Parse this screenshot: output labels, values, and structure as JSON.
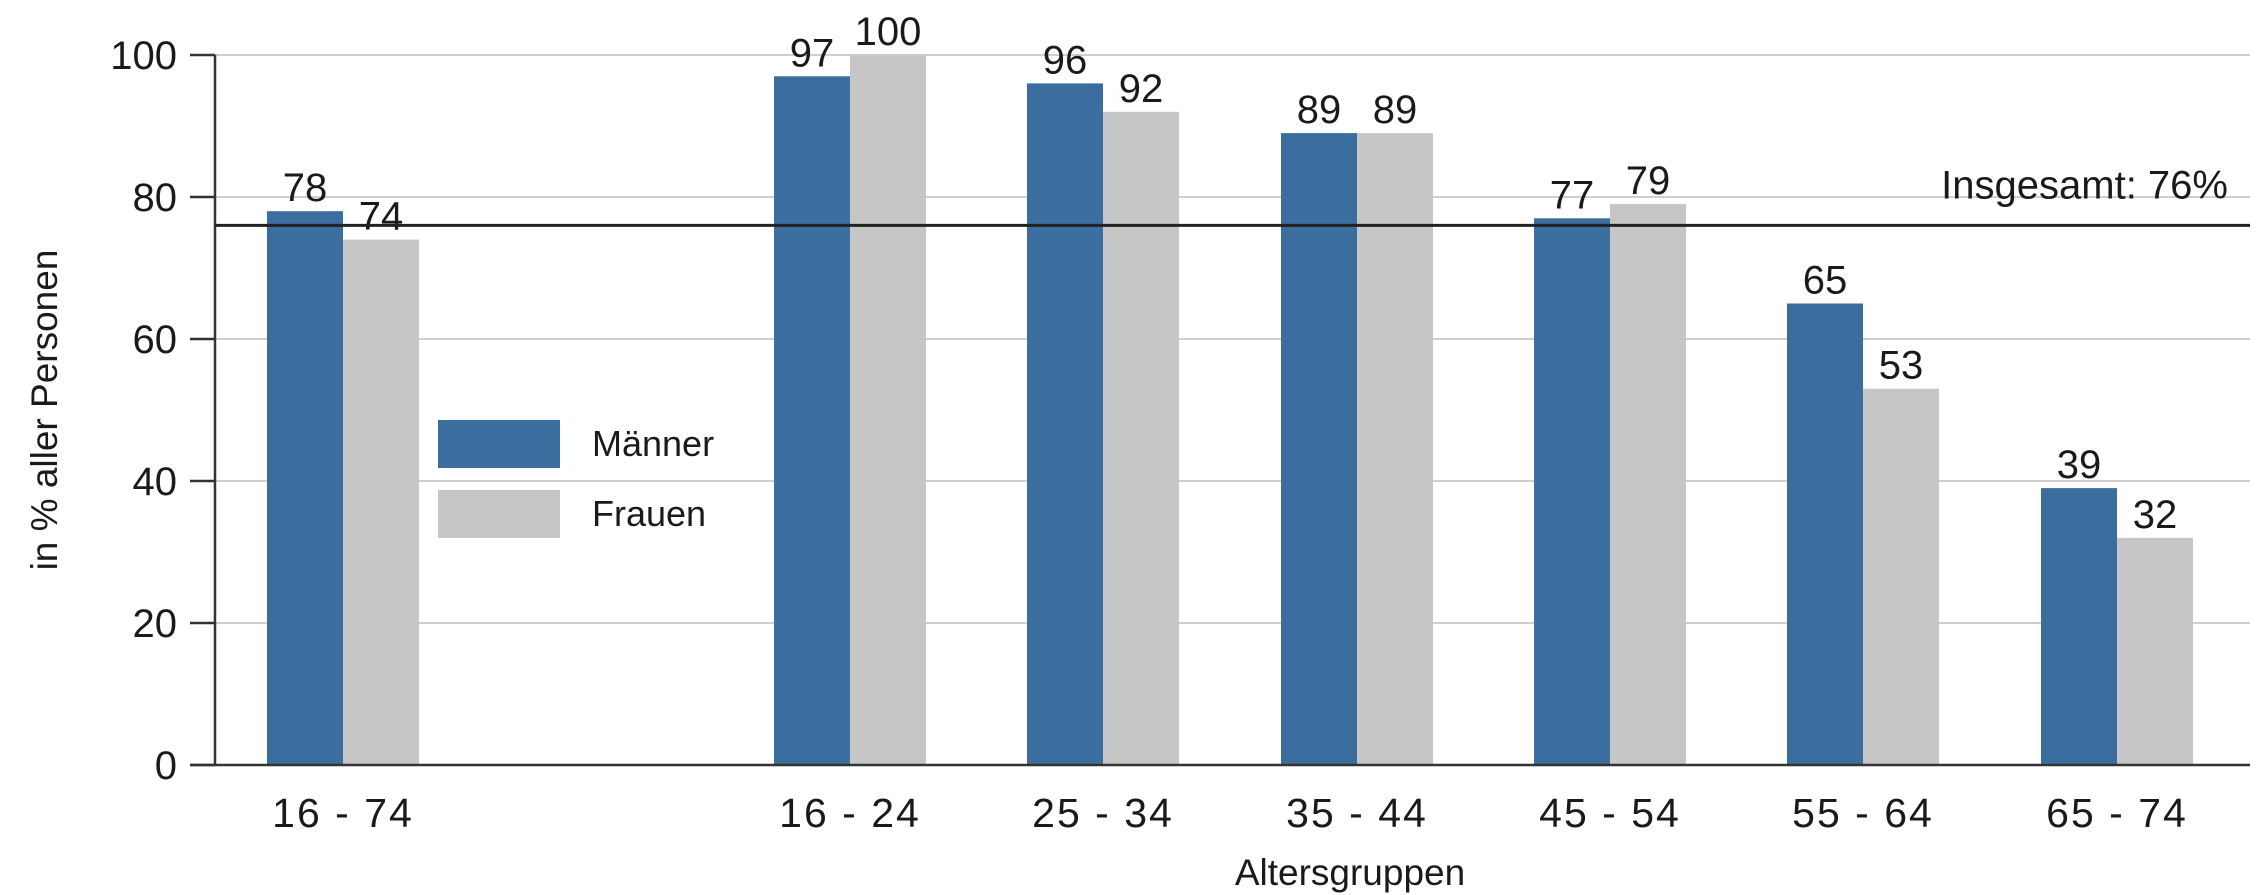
{
  "chart_data": {
    "type": "bar",
    "categories": [
      "16 - 74",
      "16 - 24",
      "25 - 34",
      "35 - 44",
      "45 - 54",
      "55 - 64",
      "65 - 74"
    ],
    "series": [
      {
        "name": "Männer",
        "color": "#3b6e9e",
        "values": [
          78,
          97,
          96,
          89,
          77,
          65,
          39
        ],
        "labels": [
          "78",
          "97",
          "96",
          "89",
          "77",
          "65",
          "39"
        ]
      },
      {
        "name": "Frauen",
        "color": "#c6c6c6",
        "values": [
          74,
          100,
          92,
          89,
          79,
          53,
          32
        ],
        "labels": [
          "74",
          "100",
          "92",
          "89",
          "79",
          "53",
          "32"
        ]
      }
    ],
    "xlabel": "Altersgruppen",
    "ylabel": "in % aller Personen",
    "ylim": [
      0,
      100
    ],
    "yticks": [
      0,
      20,
      40,
      60,
      80,
      100
    ],
    "ytick_labels": [
      "0",
      "20",
      "40",
      "60",
      "80",
      "100"
    ],
    "grid": true,
    "legend_position": "left",
    "reference_line": {
      "value": 76,
      "label": "Insgesamt: 76%"
    }
  }
}
